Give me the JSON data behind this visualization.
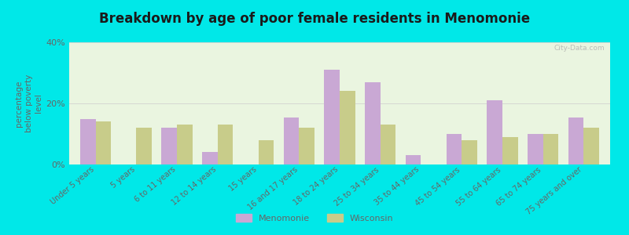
{
  "title": "Breakdown by age of poor female residents in Menomonie",
  "categories": [
    "Under 5 years",
    "5 years",
    "6 to 11 years",
    "12 to 14 years",
    "15 years",
    "16 and 17 years",
    "18 to 24 years",
    "25 to 34 years",
    "35 to 44 years",
    "45 to 54 years",
    "55 to 64 years",
    "65 to 74 years",
    "75 years and over"
  ],
  "menomonie": [
    15.0,
    0.0,
    12.0,
    4.0,
    0.0,
    15.5,
    31.0,
    27.0,
    3.0,
    10.0,
    21.0,
    10.0,
    15.5
  ],
  "wisconsin": [
    14.0,
    12.0,
    13.0,
    13.0,
    8.0,
    12.0,
    24.0,
    13.0,
    0.0,
    8.0,
    9.0,
    10.0,
    12.0
  ],
  "menomonie_color": "#c9a8d4",
  "wisconsin_color": "#c8cc8a",
  "background_color": "#00e8e8",
  "plot_bg": "#eaf5e0",
  "title_color": "#1a1a1a",
  "axis_color": "#666666",
  "ylabel": "percentage\nbelow poverty\nlevel",
  "ylim": [
    0,
    40
  ],
  "yticks": [
    0,
    20,
    40
  ],
  "ytick_labels": [
    "0%",
    "20%",
    "40%"
  ],
  "bar_width": 0.38,
  "legend_menomonie": "Menomonie",
  "legend_wisconsin": "Wisconsin",
  "watermark": "City-Data.com"
}
